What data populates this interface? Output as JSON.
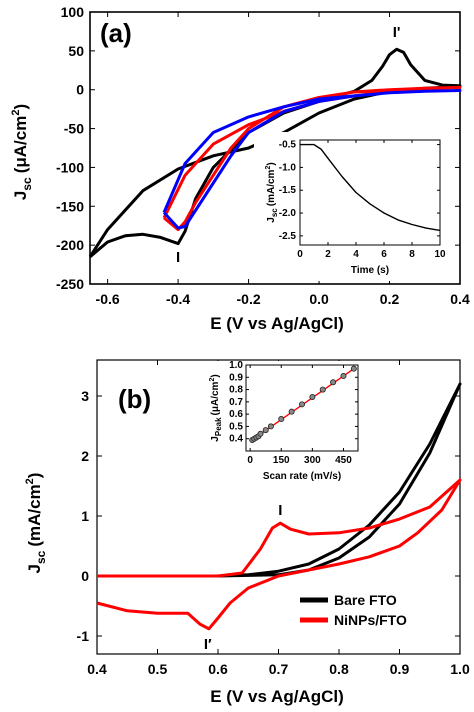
{
  "chart_data": [
    {
      "panel": "(a)",
      "type": "line",
      "xlabel": "E (V vs Ag/AgCl)",
      "ylabel_main": "J",
      "ylabel_sub": "sc",
      "ylabel_unit": "(μA/cm",
      "ylabel_sup": "2",
      "ylabel_close": ")",
      "xlim": [
        -0.65,
        0.4
      ],
      "ylim": [
        -250,
        100
      ],
      "xticks": [
        -0.6,
        -0.4,
        -0.2,
        0.0,
        0.2,
        0.4
      ],
      "xtick_labels": [
        "-0.6",
        "-0.4",
        "-0.2",
        "0.0",
        "0.2",
        "0.4"
      ],
      "yticks": [
        -250,
        -200,
        -150,
        -100,
        -50,
        0,
        50,
        100
      ],
      "ytick_labels": [
        "-250",
        "-200",
        "-150",
        "-100",
        "-50",
        "0",
        "50",
        "100"
      ],
      "annotations": [
        {
          "text": "I",
          "x": -0.4,
          "y": -222
        },
        {
          "text": "I'",
          "x": 0.22,
          "y": 68
        }
      ],
      "series": [
        {
          "color": "#000000",
          "points": [
            [
              -0.65,
              -215
            ],
            [
              -0.6,
              -196
            ],
            [
              -0.55,
              -188
            ],
            [
              -0.5,
              -186
            ],
            [
              -0.45,
              -190
            ],
            [
              -0.4,
              -198
            ],
            [
              -0.38,
              -182
            ],
            [
              -0.35,
              -140
            ],
            [
              -0.3,
              -100
            ],
            [
              -0.2,
              -55
            ],
            [
              -0.1,
              -30
            ],
            [
              0.0,
              -15
            ],
            [
              0.05,
              -8
            ],
            [
              0.1,
              -2
            ],
            [
              0.15,
              12
            ],
            [
              0.18,
              30
            ],
            [
              0.2,
              45
            ],
            [
              0.22,
              52
            ],
            [
              0.24,
              48
            ],
            [
              0.26,
              32
            ],
            [
              0.3,
              12
            ],
            [
              0.35,
              6
            ],
            [
              0.4,
              5
            ],
            [
              0.35,
              3
            ],
            [
              0.3,
              2
            ],
            [
              0.2,
              -2
            ],
            [
              0.1,
              -12
            ],
            [
              0.0,
              -30
            ],
            [
              -0.1,
              -55
            ],
            [
              -0.2,
              -75
            ],
            [
              -0.3,
              -85
            ],
            [
              -0.4,
              -102
            ],
            [
              -0.5,
              -130
            ],
            [
              -0.6,
              -180
            ],
            [
              -0.65,
              -215
            ]
          ]
        },
        {
          "color": "#ff0000",
          "points": [
            [
              -0.44,
              -165
            ],
            [
              -0.4,
              -180
            ],
            [
              -0.38,
              -170
            ],
            [
              -0.35,
              -145
            ],
            [
              -0.3,
              -110
            ],
            [
              -0.25,
              -75
            ],
            [
              -0.2,
              -50
            ],
            [
              -0.1,
              -22
            ],
            [
              0.0,
              -10
            ],
            [
              0.1,
              -3
            ],
            [
              0.2,
              0
            ],
            [
              0.3,
              2
            ],
            [
              0.4,
              3
            ],
            [
              0.3,
              1
            ],
            [
              0.2,
              -2
            ],
            [
              0.1,
              -8
            ],
            [
              0.0,
              -15
            ],
            [
              -0.1,
              -28
            ],
            [
              -0.2,
              -45
            ],
            [
              -0.3,
              -70
            ],
            [
              -0.38,
              -110
            ],
            [
              -0.44,
              -165
            ]
          ]
        },
        {
          "color": "#0000ff",
          "points": [
            [
              -0.44,
              -158
            ],
            [
              -0.4,
              -178
            ],
            [
              -0.38,
              -176
            ],
            [
              -0.35,
              -155
            ],
            [
              -0.3,
              -120
            ],
            [
              -0.25,
              -85
            ],
            [
              -0.2,
              -55
            ],
            [
              -0.1,
              -28
            ],
            [
              0.0,
              -15
            ],
            [
              0.1,
              -8
            ],
            [
              0.2,
              -4
            ],
            [
              0.3,
              -2
            ],
            [
              0.4,
              -1
            ],
            [
              0.3,
              -2
            ],
            [
              0.2,
              -4
            ],
            [
              0.1,
              -8
            ],
            [
              0.0,
              -12
            ],
            [
              -0.1,
              -22
            ],
            [
              -0.2,
              -35
            ],
            [
              -0.3,
              -55
            ],
            [
              -0.38,
              -95
            ],
            [
              -0.44,
              -158
            ]
          ]
        }
      ],
      "inset": {
        "type": "line",
        "xlabel": "Time (s)",
        "ylabel_main": "J",
        "ylabel_sub": "sc",
        "ylabel_unit": "(mA/cm",
        "ylabel_sup": "2",
        "ylabel_close": ")",
        "xlim": [
          0,
          10
        ],
        "ylim": [
          -2.7,
          -0.4
        ],
        "xticks": [
          0,
          2,
          4,
          6,
          8,
          10
        ],
        "xtick_labels": [
          "0",
          "2",
          "4",
          "6",
          "8",
          "10"
        ],
        "yticks": [
          -2.5,
          -2.0,
          -1.5,
          -1.0,
          -0.5
        ],
        "ytick_labels": [
          "-2.5",
          "-2.0",
          "-1.5",
          "-1.0",
          "-0.5"
        ],
        "series": [
          {
            "color": "#000000",
            "points": [
              [
                0,
                -0.5
              ],
              [
                0.5,
                -0.5
              ],
              [
                1.0,
                -0.5
              ],
              [
                1.5,
                -0.6
              ],
              [
                2,
                -0.8
              ],
              [
                3,
                -1.2
              ],
              [
                4,
                -1.55
              ],
              [
                5,
                -1.8
              ],
              [
                6,
                -2.0
              ],
              [
                7,
                -2.15
              ],
              [
                8,
                -2.25
              ],
              [
                9,
                -2.33
              ],
              [
                10,
                -2.38
              ]
            ]
          }
        ]
      }
    },
    {
      "panel": "(b)",
      "type": "line",
      "xlabel": "E (V vs Ag/AgCl)",
      "ylabel_main": "J",
      "ylabel_sub": "sc",
      "ylabel_unit": "(mA/cm",
      "ylabel_sup": "2",
      "ylabel_close": ")",
      "xlim": [
        0.4,
        1.0
      ],
      "ylim": [
        -1.3,
        3.6
      ],
      "xticks": [
        0.4,
        0.5,
        0.6,
        0.7,
        0.8,
        0.9,
        1.0
      ],
      "xtick_labels": [
        "0.4",
        "0.5",
        "0.6",
        "0.7",
        "0.8",
        "0.9",
        "1.0"
      ],
      "yticks": [
        -1,
        0,
        1,
        2,
        3
      ],
      "ytick_labels": [
        "-1",
        "0",
        "1",
        "2",
        "3"
      ],
      "annotations": [
        {
          "text": "I",
          "x": 0.703,
          "y": 1.02
        },
        {
          "text": "I′",
          "x": 0.583,
          "y": -1.22
        }
      ],
      "legend": {
        "position": "bottom-right",
        "entries": [
          {
            "label": "Bare FTO",
            "color": "#000000"
          },
          {
            "label": "NiNPs/FTO",
            "color": "#ff0000"
          }
        ]
      },
      "series": [
        {
          "name": "Bare FTO",
          "color": "#000000",
          "points": [
            [
              0.4,
              0.0
            ],
            [
              0.5,
              0.0
            ],
            [
              0.6,
              0.0
            ],
            [
              0.65,
              0.02
            ],
            [
              0.7,
              0.08
            ],
            [
              0.75,
              0.2
            ],
            [
              0.8,
              0.45
            ],
            [
              0.85,
              0.85
            ],
            [
              0.9,
              1.4
            ],
            [
              0.95,
              2.2
            ],
            [
              1.0,
              3.2
            ],
            [
              0.95,
              2.05
            ],
            [
              0.9,
              1.2
            ],
            [
              0.85,
              0.65
            ],
            [
              0.8,
              0.3
            ],
            [
              0.75,
              0.1
            ],
            [
              0.7,
              0.02
            ],
            [
              0.6,
              0.0
            ],
            [
              0.5,
              0.0
            ],
            [
              0.4,
              0.0
            ]
          ]
        },
        {
          "name": "NiNPs/FTO",
          "color": "#ff0000",
          "points": [
            [
              0.4,
              0.0
            ],
            [
              0.5,
              0.0
            ],
            [
              0.6,
              0.0
            ],
            [
              0.64,
              0.05
            ],
            [
              0.67,
              0.45
            ],
            [
              0.69,
              0.8
            ],
            [
              0.703,
              0.88
            ],
            [
              0.72,
              0.78
            ],
            [
              0.75,
              0.7
            ],
            [
              0.8,
              0.72
            ],
            [
              0.85,
              0.8
            ],
            [
              0.9,
              0.95
            ],
            [
              0.95,
              1.15
            ],
            [
              1.0,
              1.6
            ],
            [
              0.97,
              1.1
            ],
            [
              0.93,
              0.72
            ],
            [
              0.9,
              0.5
            ],
            [
              0.85,
              0.32
            ],
            [
              0.8,
              0.2
            ],
            [
              0.7,
              0.0
            ],
            [
              0.65,
              -0.2
            ],
            [
              0.62,
              -0.45
            ],
            [
              0.6,
              -0.7
            ],
            [
              0.585,
              -0.88
            ],
            [
              0.57,
              -0.8
            ],
            [
              0.55,
              -0.62
            ],
            [
              0.5,
              -0.62
            ],
            [
              0.45,
              -0.58
            ],
            [
              0.4,
              -0.45
            ]
          ]
        }
      ],
      "inset": {
        "type": "scatter",
        "xlabel": "Scan rate (mV/s)",
        "ylabel_main": "J",
        "ylabel_sub": "Peak",
        "ylabel_unit": "(μA/cm",
        "ylabel_sup": "2",
        "ylabel_close": ")",
        "xlim": [
          -20,
          520
        ],
        "ylim": [
          0.3,
          1.0
        ],
        "xticks": [
          0,
          150,
          300,
          450
        ],
        "xtick_labels": [
          "0",
          "150",
          "300",
          "450"
        ],
        "yticks": [
          0.4,
          0.5,
          0.6,
          0.7,
          0.8,
          0.9,
          1.0
        ],
        "ytick_labels": [
          "0.4",
          "0.5",
          "0.6",
          "0.7",
          "0.8",
          "0.9",
          "1.0"
        ],
        "fit_color": "#ff0000",
        "fit": [
          [
            10,
            0.39
          ],
          [
            500,
            0.97
          ]
        ],
        "points": [
          [
            10,
            0.39
          ],
          [
            20,
            0.4
          ],
          [
            30,
            0.41
          ],
          [
            40,
            0.42
          ],
          [
            50,
            0.44
          ],
          [
            75,
            0.47
          ],
          [
            100,
            0.5
          ],
          [
            150,
            0.56
          ],
          [
            200,
            0.62
          ],
          [
            250,
            0.68
          ],
          [
            300,
            0.74
          ],
          [
            350,
            0.8
          ],
          [
            400,
            0.86
          ],
          [
            450,
            0.91
          ],
          [
            500,
            0.97
          ]
        ]
      }
    }
  ]
}
